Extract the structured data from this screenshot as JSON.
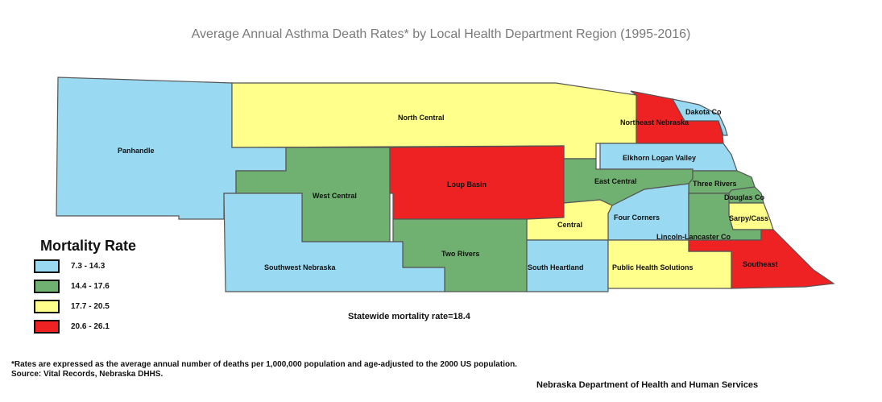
{
  "title": "Average Annual Asthma Death Rates* by Local Health Department Region (1995-2016)",
  "colors": {
    "blue": "#99d9f2",
    "green": "#70b070",
    "yellow": "#ffff8c",
    "red": "#ee2222"
  },
  "legend": {
    "title": "Mortality Rate",
    "items": [
      {
        "label": "7.3 - 14.3",
        "color": "#99d9f2"
      },
      {
        "label": "14.4 - 17.6",
        "color": "#70b070"
      },
      {
        "label": "17.7 - 20.5",
        "color": "#ffff8c"
      },
      {
        "label": "20.6 - 26.1",
        "color": "#ee2222"
      }
    ]
  },
  "regions": {
    "panhandle": "Panhandle",
    "north_central": "North Central",
    "northeast_nebraska": "Northeast Nebraska",
    "dakota_co": "Dakota Co",
    "elkhorn_logan_valley": "Elkhorn Logan Valley",
    "west_central": "West Central",
    "loup_basin": "Loup Basin",
    "east_central": "East Central",
    "three_rivers": "Three Rivers",
    "douglas_co": "Douglas Co",
    "sarpy_cass": "Sarpy/Cass",
    "four_corners": "Four Corners",
    "central": "Central",
    "lincoln_lancaster_co": "Lincoln-Lancaster Co",
    "two_rivers": "Two Rivers",
    "southwest_nebraska": "Southwest Nebraska",
    "south_heartland": "South Heartland",
    "public_health_solutions": "Public Health Solutions",
    "southeast": "Southeast"
  },
  "statewide_rate": "Statewide mortality rate=18.4",
  "footnote": {
    "line1": "*Rates are expressed as the average annual number of deaths per 1,000,000 population and age-adjusted to the 2000 US population.",
    "line2": "Source: Vital Records, Nebraska DHHS."
  },
  "agency": "Nebraska Department of Health and Human Services"
}
